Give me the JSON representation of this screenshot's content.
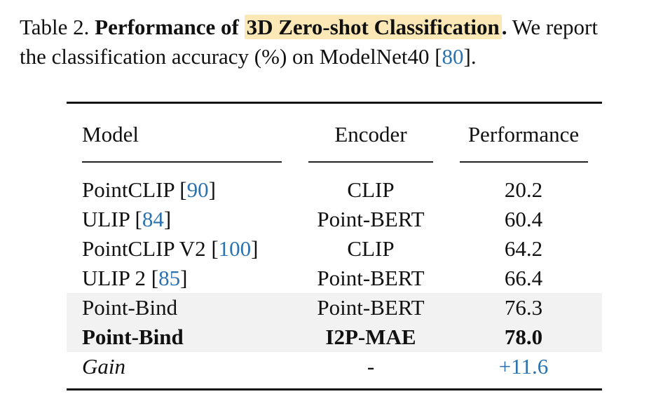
{
  "caption": {
    "label": "Table 2.",
    "bold_prefix": "Performance of",
    "highlight": "3D Zero-shot Classification",
    "bold_suffix": ".",
    "rest_line1": " We report",
    "line2_pre": "the classification accuracy (%) on ModelNet40 [",
    "line2_cite": "80",
    "line2_post": "]."
  },
  "table": {
    "headers": {
      "model": "Model",
      "encoder": "Encoder",
      "performance": "Performance"
    },
    "rows": [
      {
        "model": "PointCLIP [",
        "cite": "90",
        "model_end": "]",
        "encoder": "CLIP",
        "performance": "20.2"
      },
      {
        "model": "ULIP [",
        "cite": "84",
        "model_end": "]",
        "encoder": "Point-BERT",
        "performance": "60.4"
      },
      {
        "model": "PointCLIP V2 [",
        "cite": "100",
        "model_end": "]",
        "encoder": "CLIP",
        "performance": "64.2"
      },
      {
        "model": "ULIP 2 [",
        "cite": "85",
        "model_end": "]",
        "encoder": "Point-BERT",
        "performance": "66.4"
      },
      {
        "model": "Point-Bind",
        "encoder": "Point-BERT",
        "performance": "76.3"
      },
      {
        "model": "Point-Bind",
        "encoder": "I2P-MAE",
        "performance": "78.0"
      },
      {
        "model": "Gain",
        "encoder": "-",
        "performance": "+11.6"
      }
    ]
  },
  "colors": {
    "citation": "#2b73b0",
    "highlight": "#fbe8b6",
    "shaded_row": "#f2f2f2"
  }
}
